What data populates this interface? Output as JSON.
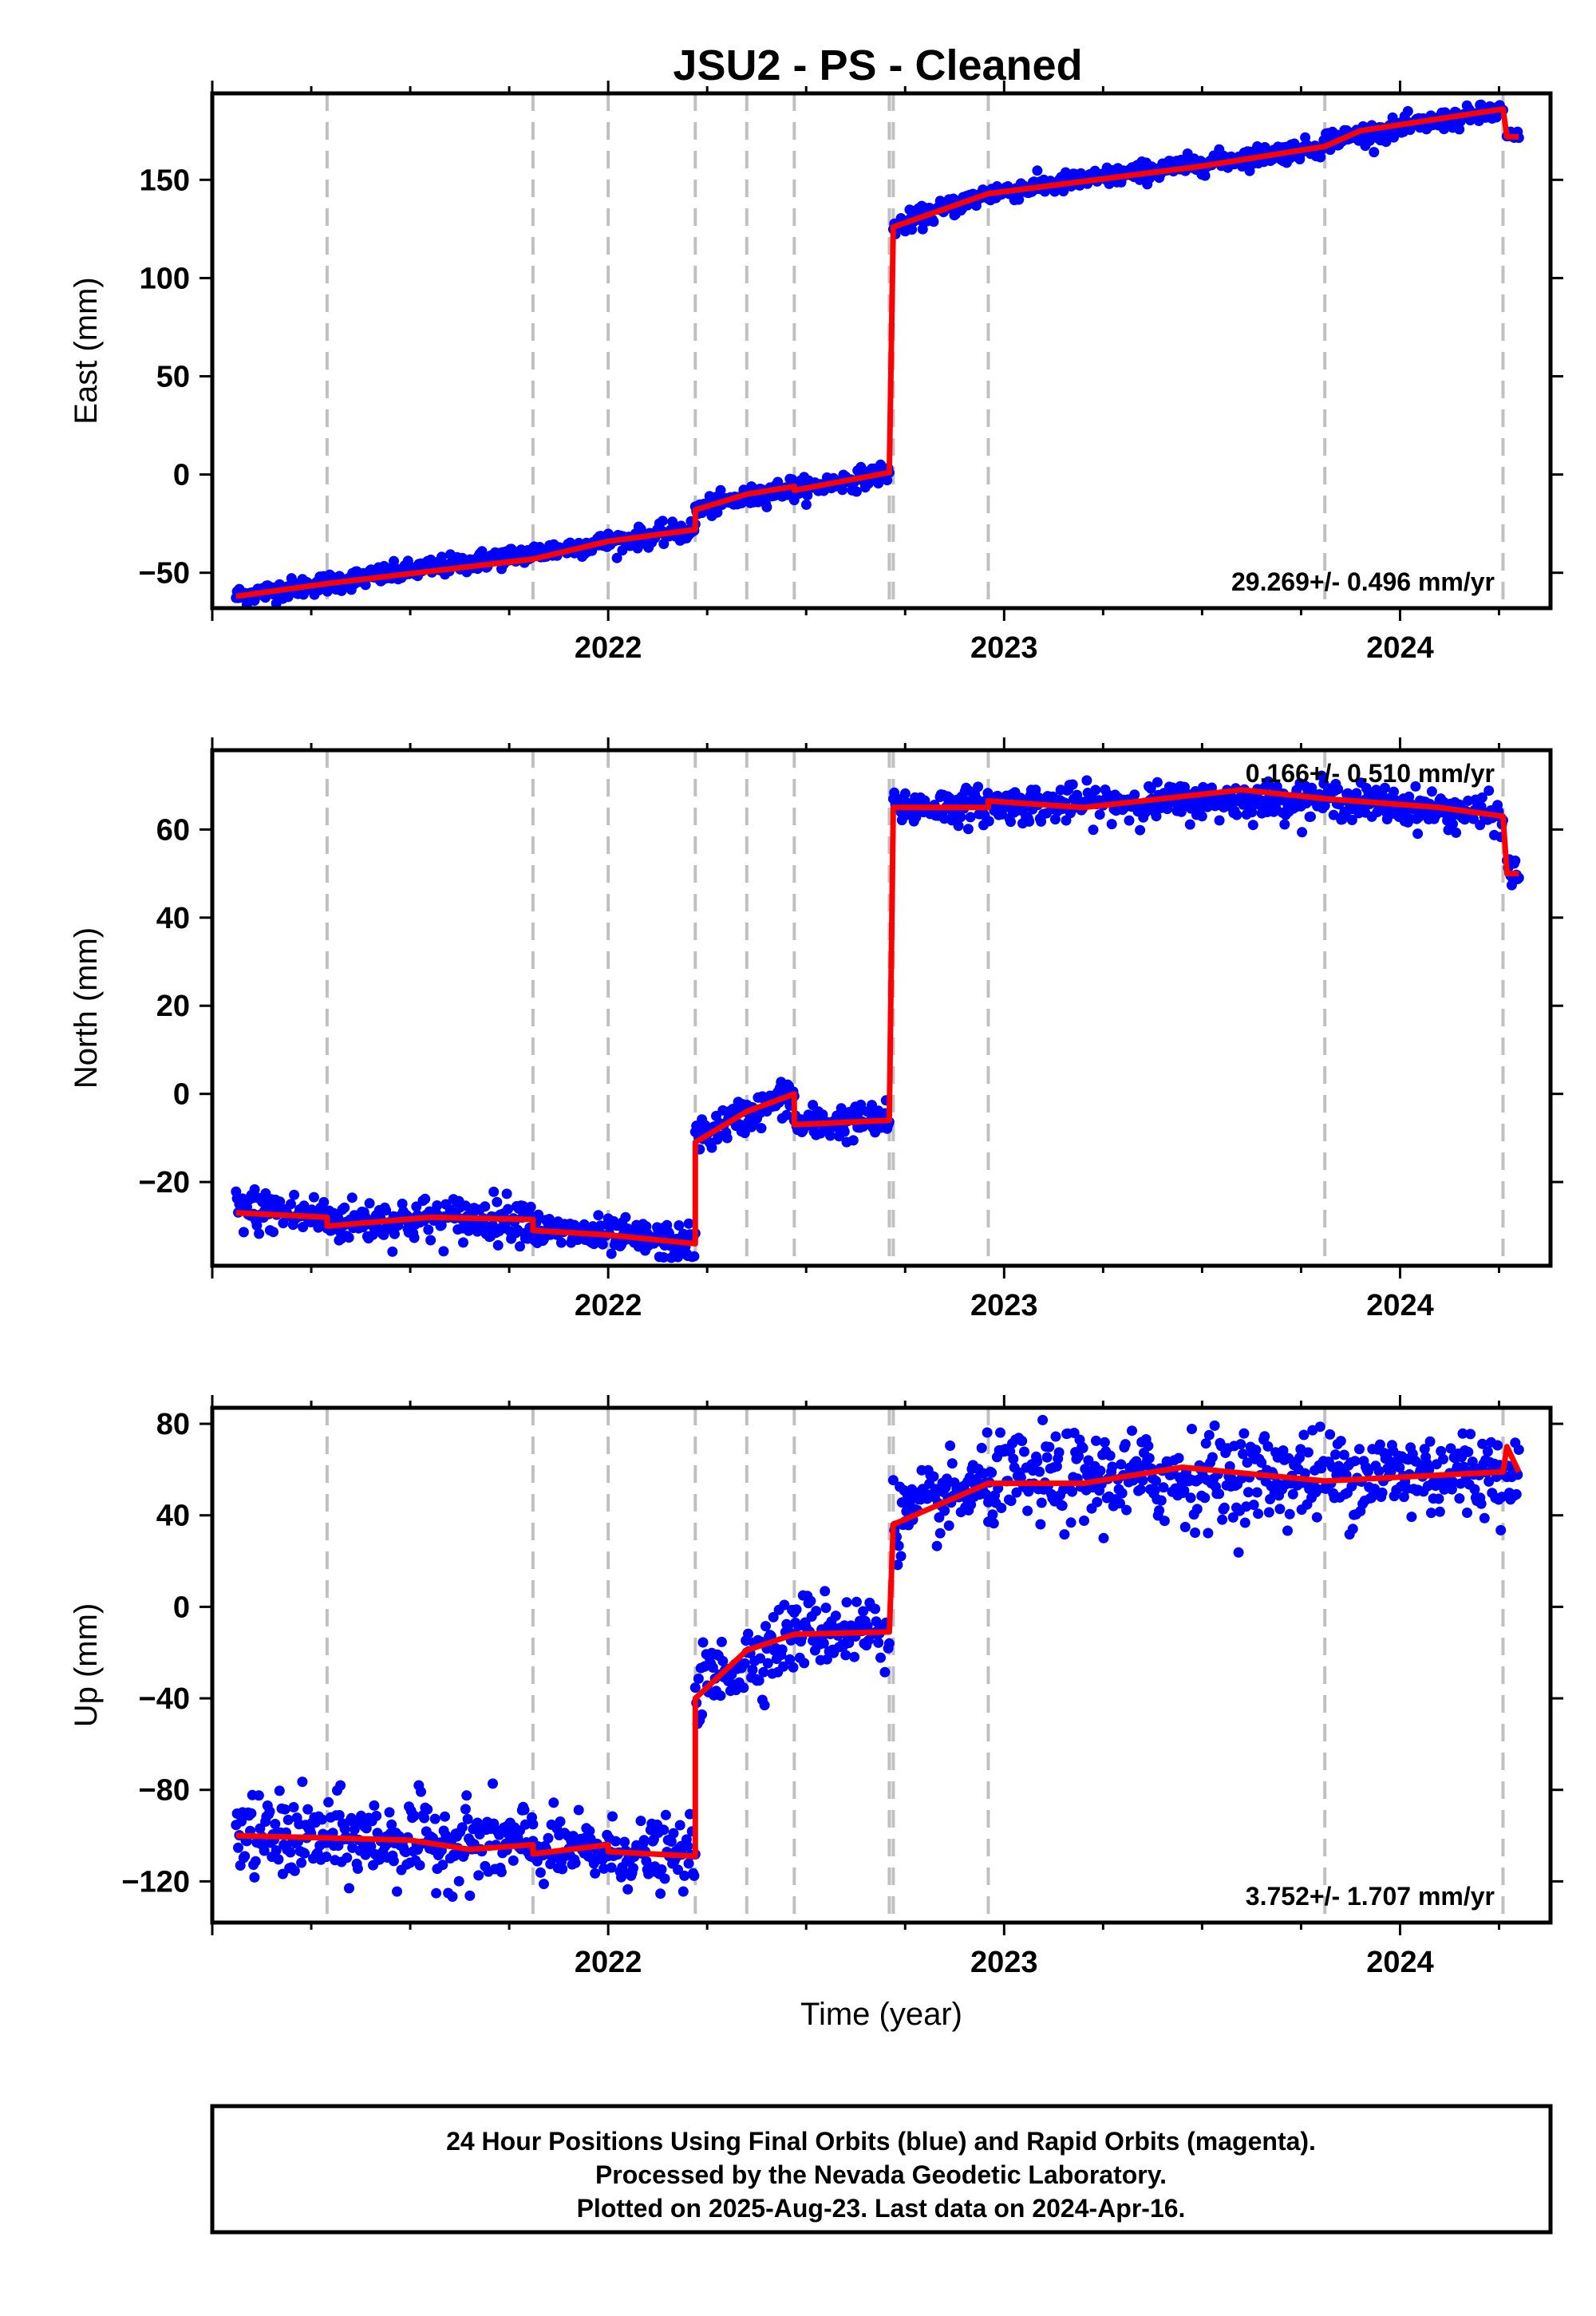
{
  "title": "JSU2  - PS - Cleaned",
  "footer": {
    "line1": "24 Hour Positions Using Final Orbits (blue) and Rapid Orbits (magenta).",
    "line2": "Processed by the Nevada Geodetic Laboratory.",
    "line3": "Plotted on 2025-Aug-23. Last data on 2024-Apr-16."
  },
  "colors": {
    "data_points": "#0000ff",
    "model_line": "#ff0000",
    "event_lines": "#c0c0c0",
    "frame": "#000000"
  },
  "chart_data": [
    {
      "type": "scatter",
      "panel": "east",
      "ylabel": "East (mm)",
      "xlabel": "",
      "xlim": [
        2021.0,
        2024.38
      ],
      "ylim": [
        -68,
        194
      ],
      "yticks": [
        -50,
        0,
        50,
        100,
        150
      ],
      "xticks": [
        2022,
        2023,
        2024
      ],
      "rate_label": "29.269+/- 0.496 mm/yr",
      "rate_position": "bottom-right",
      "grid": false,
      "event_lines": [
        2021.29,
        2021.81,
        2022.0,
        2022.22,
        2022.35,
        2022.47,
        2022.71,
        2022.72,
        2022.96,
        2023.81,
        2024.26
      ],
      "model_breakpoints": [
        {
          "x": 2021.06,
          "y": -62
        },
        {
          "x": 2021.29,
          "y": -55.5
        },
        {
          "x": 2021.81,
          "y": -43
        },
        {
          "x": 2022.0,
          "y": -34
        },
        {
          "x": 2022.22,
          "y": -28
        },
        {
          "x": 2022.22,
          "y": -18
        },
        {
          "x": 2022.35,
          "y": -10
        },
        {
          "x": 2022.47,
          "y": -6
        },
        {
          "x": 2022.47,
          "y": -8
        },
        {
          "x": 2022.71,
          "y": 1
        },
        {
          "x": 2022.72,
          "y": 126
        },
        {
          "x": 2022.96,
          "y": 143
        },
        {
          "x": 2023.5,
          "y": 157
        },
        {
          "x": 2023.81,
          "y": 167
        },
        {
          "x": 2023.9,
          "y": 175
        },
        {
          "x": 2024.26,
          "y": 186
        },
        {
          "x": 2024.27,
          "y": 172
        },
        {
          "x": 2024.3,
          "y": 172
        }
      ],
      "point_segments": [
        {
          "x0": 2021.06,
          "x1": 2022.22,
          "y0": -62,
          "y1": -28,
          "scatter": 2.5
        },
        {
          "x0": 2022.22,
          "x1": 2022.47,
          "y0": -18,
          "y1": -6,
          "scatter": 2.5
        },
        {
          "x0": 2022.47,
          "x1": 2022.71,
          "y0": -8,
          "y1": 1,
          "scatter": 2.5
        },
        {
          "x0": 2022.72,
          "x1": 2022.96,
          "y0": 126,
          "y1": 143,
          "scatter": 2.5
        },
        {
          "x0": 2022.96,
          "x1": 2023.81,
          "y0": 143,
          "y1": 167,
          "scatter": 2.5
        },
        {
          "x0": 2023.81,
          "x1": 2024.26,
          "y0": 170,
          "y1": 185,
          "scatter": 2.5
        },
        {
          "x0": 2024.27,
          "x1": 2024.3,
          "y0": 172,
          "y1": 172,
          "scatter": 1.5
        }
      ]
    },
    {
      "type": "scatter",
      "panel": "north",
      "ylabel": "North (mm)",
      "xlabel": "",
      "xlim": [
        2021.0,
        2024.38
      ],
      "ylim": [
        -39,
        78
      ],
      "yticks": [
        -20,
        0,
        20,
        40,
        60
      ],
      "xticks": [
        2022,
        2023,
        2024
      ],
      "rate_label": "0.166+/- 0.510 mm/yr",
      "rate_position": "top-right",
      "grid": false,
      "event_lines": [
        2021.29,
        2021.81,
        2022.0,
        2022.22,
        2022.35,
        2022.47,
        2022.71,
        2022.72,
        2022.96,
        2023.81,
        2024.26
      ],
      "model_breakpoints": [
        {
          "x": 2021.06,
          "y": -27
        },
        {
          "x": 2021.29,
          "y": -28
        },
        {
          "x": 2021.29,
          "y": -30
        },
        {
          "x": 2021.55,
          "y": -28
        },
        {
          "x": 2021.81,
          "y": -28.5
        },
        {
          "x": 2021.81,
          "y": -31
        },
        {
          "x": 2022.0,
          "y": -32
        },
        {
          "x": 2022.22,
          "y": -34
        },
        {
          "x": 2022.22,
          "y": -11
        },
        {
          "x": 2022.35,
          "y": -4
        },
        {
          "x": 2022.47,
          "y": 0
        },
        {
          "x": 2022.47,
          "y": -7
        },
        {
          "x": 2022.71,
          "y": -6
        },
        {
          "x": 2022.72,
          "y": 65
        },
        {
          "x": 2022.96,
          "y": 65
        },
        {
          "x": 2022.96,
          "y": 66.5
        },
        {
          "x": 2023.2,
          "y": 65
        },
        {
          "x": 2023.6,
          "y": 69
        },
        {
          "x": 2023.81,
          "y": 67
        },
        {
          "x": 2024.1,
          "y": 65
        },
        {
          "x": 2024.26,
          "y": 63
        },
        {
          "x": 2024.27,
          "y": 50
        },
        {
          "x": 2024.3,
          "y": 50
        }
      ],
      "point_segments": [
        {
          "x0": 2021.06,
          "x1": 2021.29,
          "y0": -26,
          "y1": -28,
          "scatter": 2.5
        },
        {
          "x0": 2021.29,
          "x1": 2021.81,
          "y0": -29,
          "y1": -28,
          "scatter": 2.5
        },
        {
          "x0": 2021.81,
          "x1": 2022.22,
          "y0": -31,
          "y1": -34,
          "scatter": 2.0
        },
        {
          "x0": 2022.22,
          "x1": 2022.47,
          "y0": -10,
          "y1": 0,
          "scatter": 2.0
        },
        {
          "x0": 2022.47,
          "x1": 2022.71,
          "y0": -7,
          "y1": -6,
          "scatter": 2.0
        },
        {
          "x0": 2022.72,
          "x1": 2023.81,
          "y0": 65,
          "y1": 67,
          "scatter": 2.0
        },
        {
          "x0": 2023.81,
          "x1": 2024.26,
          "y0": 67,
          "y1": 63,
          "scatter": 2.0
        },
        {
          "x0": 2024.27,
          "x1": 2024.3,
          "y0": 50,
          "y1": 50,
          "scatter": 2.0
        }
      ]
    },
    {
      "type": "scatter",
      "panel": "up",
      "ylabel": "Up (mm)",
      "xlabel": "Time (year)",
      "xlim": [
        2021.0,
        2024.38
      ],
      "ylim": [
        -138,
        87
      ],
      "yticks": [
        -120,
        -80,
        -40,
        0,
        40,
        80
      ],
      "xticks": [
        2022,
        2023,
        2024
      ],
      "rate_label": "3.752+/- 1.707 mm/yr",
      "rate_position": "bottom-right",
      "grid": false,
      "event_lines": [
        2021.29,
        2021.81,
        2022.0,
        2022.22,
        2022.35,
        2022.47,
        2022.71,
        2022.72,
        2022.96,
        2023.81,
        2024.26
      ],
      "model_breakpoints": [
        {
          "x": 2021.06,
          "y": -100
        },
        {
          "x": 2021.29,
          "y": -101
        },
        {
          "x": 2021.5,
          "y": -102
        },
        {
          "x": 2021.65,
          "y": -106
        },
        {
          "x": 2021.81,
          "y": -104
        },
        {
          "x": 2021.81,
          "y": -108
        },
        {
          "x": 2022.0,
          "y": -104
        },
        {
          "x": 2022.0,
          "y": -107
        },
        {
          "x": 2022.22,
          "y": -109
        },
        {
          "x": 2022.22,
          "y": -40
        },
        {
          "x": 2022.35,
          "y": -19
        },
        {
          "x": 2022.47,
          "y": -12
        },
        {
          "x": 2022.71,
          "y": -11
        },
        {
          "x": 2022.72,
          "y": 36
        },
        {
          "x": 2022.96,
          "y": 54
        },
        {
          "x": 2023.2,
          "y": 54
        },
        {
          "x": 2023.45,
          "y": 61
        },
        {
          "x": 2023.81,
          "y": 55
        },
        {
          "x": 2024.26,
          "y": 59
        },
        {
          "x": 2024.27,
          "y": 70
        },
        {
          "x": 2024.3,
          "y": 59
        }
      ],
      "point_segments": [
        {
          "x0": 2021.06,
          "x1": 2021.81,
          "y0": -100,
          "y1": -104,
          "scatter": 9.0
        },
        {
          "x0": 2021.81,
          "x1": 2022.22,
          "y0": -106,
          "y1": -109,
          "scatter": 7.0
        },
        {
          "x0": 2022.22,
          "x1": 2022.47,
          "y0": -35,
          "y1": -12,
          "scatter": 8.0
        },
        {
          "x0": 2022.47,
          "x1": 2022.71,
          "y0": -10,
          "y1": -10,
          "scatter": 8.0
        },
        {
          "x0": 2022.72,
          "x1": 2022.96,
          "y0": 38,
          "y1": 54,
          "scatter": 8.0
        },
        {
          "x0": 2022.96,
          "x1": 2024.26,
          "y0": 55,
          "y1": 59,
          "scatter": 10.0
        },
        {
          "x0": 2024.27,
          "x1": 2024.3,
          "y0": 60,
          "y1": 60,
          "scatter": 6.0
        }
      ]
    }
  ]
}
